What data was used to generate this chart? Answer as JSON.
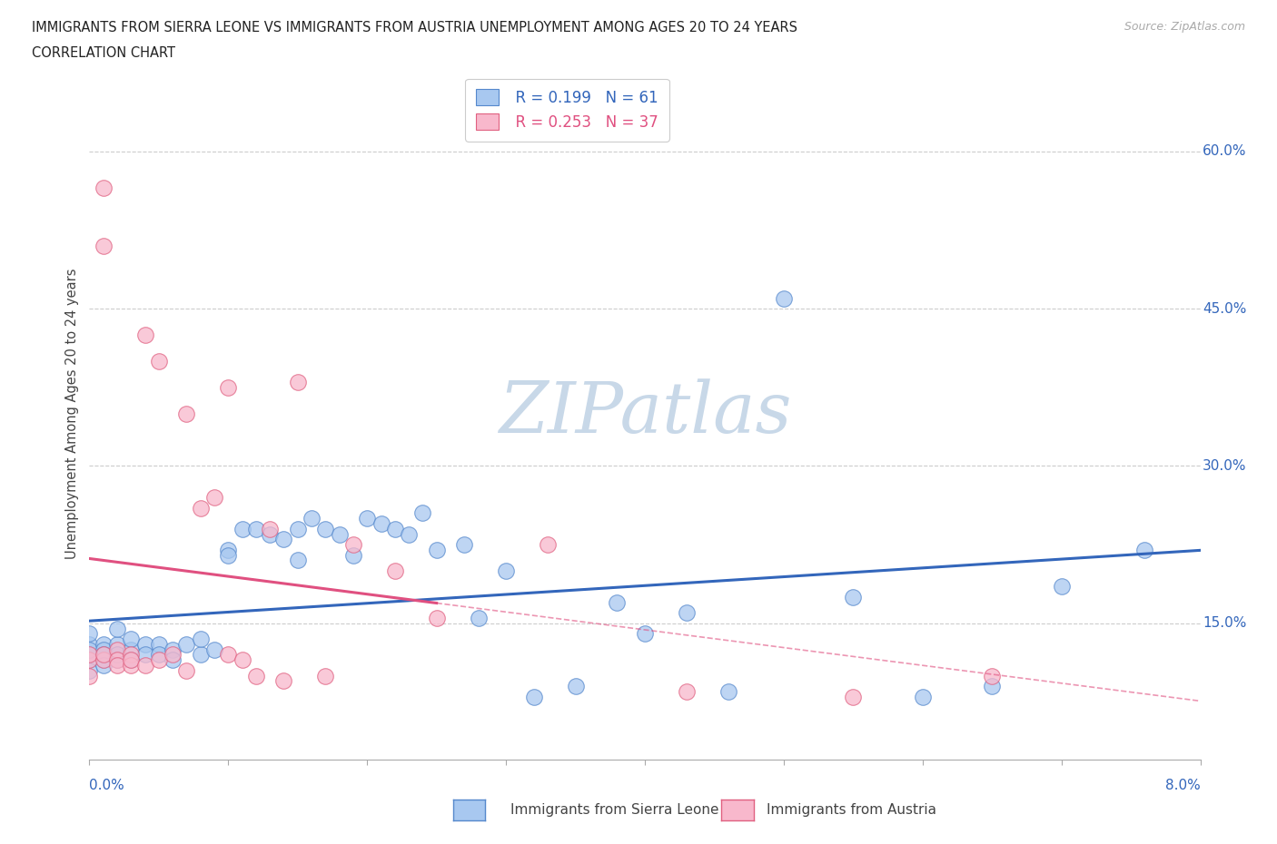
{
  "title_line1": "IMMIGRANTS FROM SIERRA LEONE VS IMMIGRANTS FROM AUSTRIA UNEMPLOYMENT AMONG AGES 20 TO 24 YEARS",
  "title_line2": "CORRELATION CHART",
  "source_text": "Source: ZipAtlas.com",
  "ylabel": "Unemployment Among Ages 20 to 24 years",
  "y_tick_labels": [
    "15.0%",
    "30.0%",
    "45.0%",
    "60.0%"
  ],
  "y_tick_values": [
    0.15,
    0.3,
    0.45,
    0.6
  ],
  "xmin": 0.0,
  "xmax": 0.08,
  "ymin": 0.02,
  "ymax": 0.68,
  "legend_r1": "R = 0.199",
  "legend_n1": "N = 61",
  "legend_r2": "R = 0.253",
  "legend_n2": "N = 37",
  "color_sierra_fill": "#a8c8f0",
  "color_sierra_edge": "#5588cc",
  "color_austria_fill": "#f8b8cc",
  "color_austria_edge": "#e06080",
  "color_sierra_line": "#3366bb",
  "color_austria_line": "#e05080",
  "color_grid": "#cccccc",
  "watermark_color": "#c8d8e8",
  "sl_x": [
    0.0,
    0.0,
    0.0,
    0.0,
    0.0,
    0.0,
    0.001,
    0.001,
    0.001,
    0.001,
    0.001,
    0.002,
    0.002,
    0.002,
    0.002,
    0.003,
    0.003,
    0.003,
    0.004,
    0.004,
    0.005,
    0.005,
    0.006,
    0.006,
    0.007,
    0.008,
    0.008,
    0.009,
    0.01,
    0.01,
    0.011,
    0.012,
    0.013,
    0.014,
    0.015,
    0.015,
    0.016,
    0.017,
    0.018,
    0.019,
    0.02,
    0.021,
    0.022,
    0.023,
    0.024,
    0.025,
    0.027,
    0.028,
    0.03,
    0.032,
    0.035,
    0.038,
    0.04,
    0.043,
    0.046,
    0.05,
    0.055,
    0.06,
    0.065,
    0.07,
    0.076
  ],
  "sl_y": [
    0.13,
    0.14,
    0.115,
    0.12,
    0.125,
    0.105,
    0.13,
    0.115,
    0.125,
    0.12,
    0.11,
    0.13,
    0.115,
    0.12,
    0.145,
    0.125,
    0.135,
    0.115,
    0.13,
    0.12,
    0.13,
    0.12,
    0.125,
    0.115,
    0.13,
    0.12,
    0.135,
    0.125,
    0.22,
    0.215,
    0.24,
    0.24,
    0.235,
    0.23,
    0.24,
    0.21,
    0.25,
    0.24,
    0.235,
    0.215,
    0.25,
    0.245,
    0.24,
    0.235,
    0.255,
    0.22,
    0.225,
    0.155,
    0.2,
    0.08,
    0.09,
    0.17,
    0.14,
    0.16,
    0.085,
    0.46,
    0.175,
    0.08,
    0.09,
    0.185,
    0.22
  ],
  "au_x": [
    0.0,
    0.0,
    0.0,
    0.001,
    0.001,
    0.001,
    0.001,
    0.002,
    0.002,
    0.002,
    0.003,
    0.003,
    0.003,
    0.004,
    0.004,
    0.005,
    0.005,
    0.006,
    0.007,
    0.007,
    0.008,
    0.009,
    0.01,
    0.01,
    0.011,
    0.012,
    0.013,
    0.014,
    0.015,
    0.017,
    0.019,
    0.022,
    0.025,
    0.033,
    0.043,
    0.055,
    0.065
  ],
  "au_y": [
    0.1,
    0.115,
    0.12,
    0.565,
    0.51,
    0.115,
    0.12,
    0.125,
    0.115,
    0.11,
    0.12,
    0.11,
    0.115,
    0.425,
    0.11,
    0.4,
    0.115,
    0.12,
    0.35,
    0.105,
    0.26,
    0.27,
    0.12,
    0.375,
    0.115,
    0.1,
    0.24,
    0.095,
    0.38,
    0.1,
    0.225,
    0.2,
    0.155,
    0.225,
    0.085,
    0.08,
    0.1
  ]
}
